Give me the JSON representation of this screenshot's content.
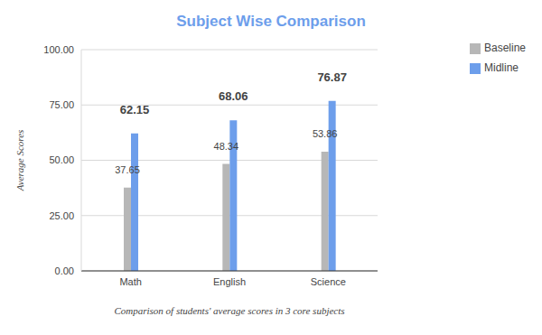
{
  "chart_data": {
    "type": "bar",
    "title": "Subject Wise Comparison",
    "x_label": "Comparison of students' average scores in 3 core subjects",
    "y_label": "Average Scores",
    "categories": [
      "Math",
      "English",
      "Science"
    ],
    "series": [
      {
        "name": "Baseline",
        "color": "#b7b7b7",
        "values": [
          37.65,
          48.34,
          53.86
        ]
      },
      {
        "name": "Midline",
        "color": "#6d9eeb",
        "values": [
          62.15,
          68.06,
          76.87
        ]
      }
    ],
    "ylim": [
      0,
      100
    ],
    "yticks": [
      {
        "value": 0,
        "label": "0.00"
      },
      {
        "value": 25,
        "label": "25.00"
      },
      {
        "value": 50,
        "label": "50.00"
      },
      {
        "value": 75,
        "label": "75.00"
      },
      {
        "value": 100,
        "label": "100.00"
      }
    ],
    "grid": true,
    "legend": "top-right",
    "data_labels": true
  }
}
